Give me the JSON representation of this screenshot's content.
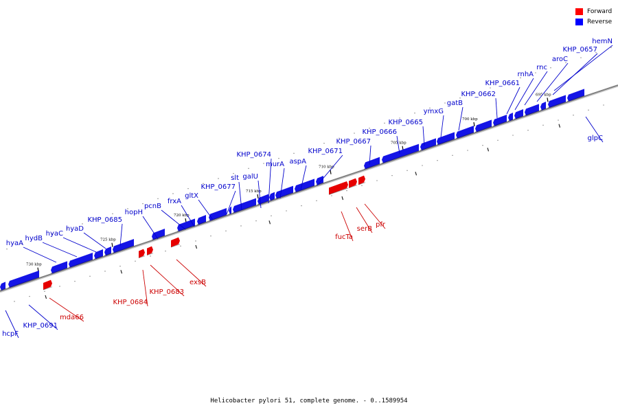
{
  "caption": "Helicobacter pylori 51, complete genome. - 0..1589954",
  "legend": [
    {
      "label": "Forward",
      "color": "#ff0000"
    },
    {
      "label": "Reverse",
      "color": "#0000ff"
    }
  ],
  "colors": {
    "forward": "#e60000",
    "reverse": "#1414e6",
    "forward_label": "#cc0000",
    "reverse_label": "#0000cc",
    "axis": "#808080"
  },
  "ticks": [
    "695 kbp",
    "700 kbp",
    "705 kbp",
    "710 kbp",
    "715 kbp",
    "720 kbp",
    "725 kbp",
    "730 kbp"
  ],
  "reverse_labels": [
    "hemN",
    "KHP_0657",
    "aroC",
    "rnc",
    "rnhA",
    "KHP_0661",
    "KHP_0662",
    "gatB",
    "ymxG",
    "KHP_0665",
    "KHP_0666",
    "KHP_0667",
    "KHP_0671",
    "aspA",
    "murA",
    "KHP_0674",
    "galU",
    "slt",
    "KHP_0677",
    "gltX",
    "frxA",
    "pcnB",
    "hopH",
    "KHP_0685",
    "hyaD",
    "hyaC",
    "hydB",
    "hyaA",
    "glpC",
    "KHP_0691",
    "hcpF"
  ],
  "forward_labels": [
    "fucTa",
    "serB",
    "pfr",
    "exsB",
    "KHP_0683",
    "KHP_0684",
    "mda66"
  ]
}
